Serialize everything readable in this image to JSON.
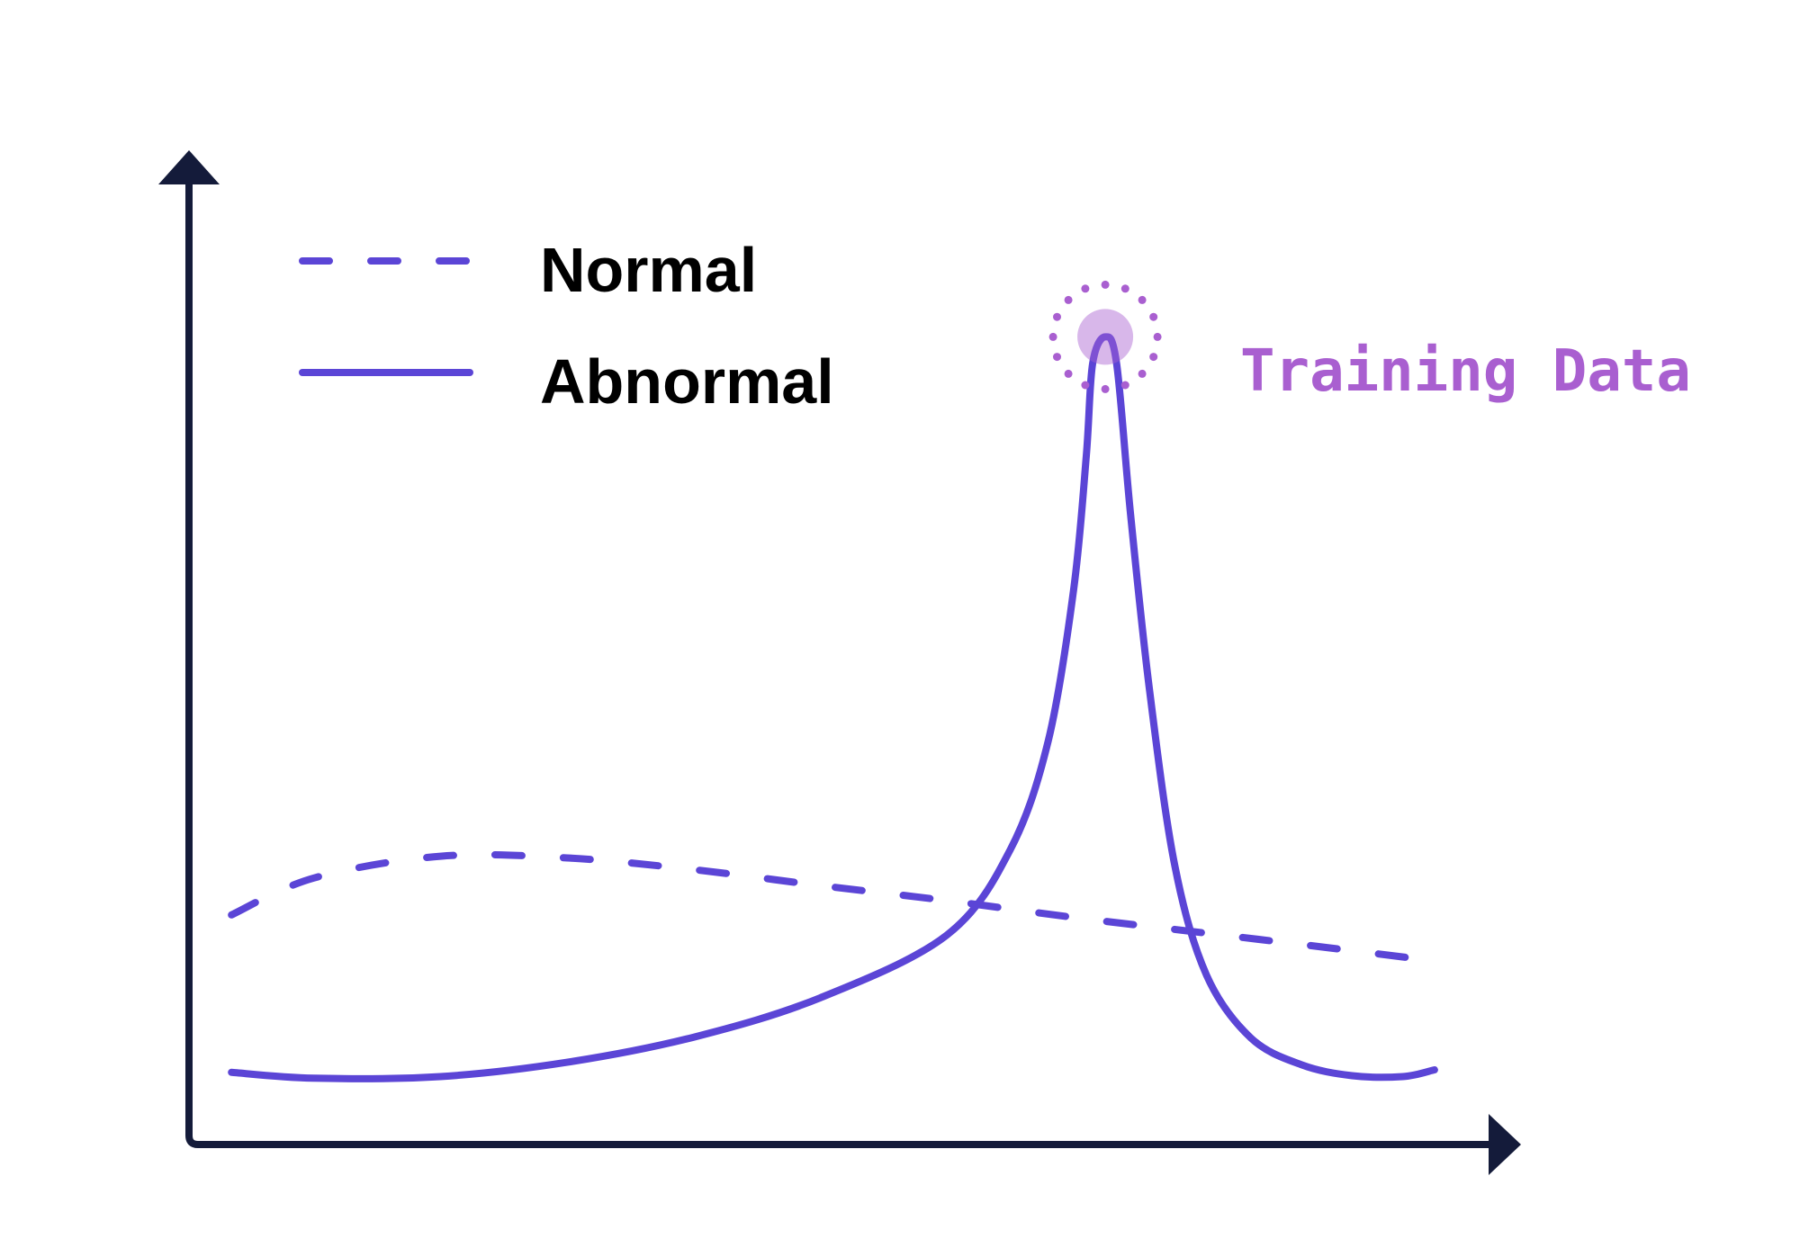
{
  "chart_data": {
    "type": "line",
    "title": "",
    "xlabel": "",
    "ylabel": "",
    "xlim": [
      0,
      100
    ],
    "ylim": [
      0,
      100
    ],
    "grid": false,
    "legend_placement": "top-left",
    "series": [
      {
        "name": "Normal",
        "style": "dashed",
        "color": "#5b45d6",
        "points": [
          [
            3.5,
            27.2
          ],
          [
            10.0,
            31.6
          ],
          [
            20.0,
            34.2
          ],
          [
            30.0,
            34.0
          ],
          [
            40.0,
            32.6
          ],
          [
            50.0,
            30.7
          ],
          [
            60.0,
            28.9
          ],
          [
            70.0,
            26.9
          ],
          [
            80.0,
            25.1
          ],
          [
            90.0,
            23.3
          ],
          [
            98.5,
            21.7
          ]
        ]
      },
      {
        "name": "Abnormal",
        "style": "solid",
        "color": "#5b45d6",
        "points": [
          [
            3.5,
            8.4
          ],
          [
            10.0,
            7.7
          ],
          [
            20.0,
            7.9
          ],
          [
            30.0,
            9.6
          ],
          [
            40.0,
            12.6
          ],
          [
            50.0,
            17.3
          ],
          [
            60.0,
            24.8
          ],
          [
            65.0,
            35.0
          ],
          [
            68.0,
            48.0
          ],
          [
            70.0,
            66.0
          ],
          [
            71.0,
            82.0
          ],
          [
            71.5,
            93.0
          ],
          [
            72.5,
            96.2
          ],
          [
            73.4,
            93.0
          ],
          [
            74.5,
            75.0
          ],
          [
            76.0,
            54.0
          ],
          [
            78.0,
            33.0
          ],
          [
            80.5,
            20.0
          ],
          [
            84.0,
            12.5
          ],
          [
            88.0,
            9.3
          ],
          [
            92.0,
            8.0
          ],
          [
            96.0,
            7.9
          ],
          [
            98.5,
            8.7
          ]
        ]
      }
    ],
    "annotations": [
      {
        "text": "Training Data",
        "x": 72.5,
        "y": 96.2,
        "color": "#a95fd0"
      }
    ]
  },
  "colors": {
    "axis": "#141b3a",
    "line": "#5b45d6",
    "highlight": "#a95fd0",
    "legend_text": "#000000"
  }
}
